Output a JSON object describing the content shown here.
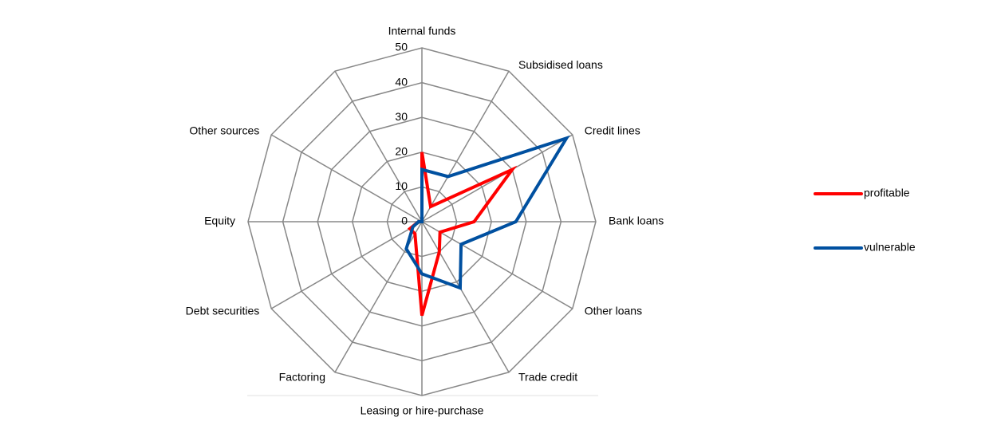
{
  "chart_data": {
    "type": "radar",
    "categories": [
      "Internal funds",
      "Subsidised loans",
      "Credit lines",
      "Bank loans",
      "Other loans",
      "Trade credit",
      "Leasing or hire-purchase",
      "Factoring",
      "Debt securities",
      "Equity",
      "Other sources",
      null
    ],
    "series": [
      {
        "name": "profitable",
        "color": "#ff0000",
        "values": [
          20,
          5,
          30,
          15,
          6,
          10,
          27,
          4,
          4,
          1,
          0,
          0
        ]
      },
      {
        "name": "vulnerable",
        "color": "#0050a0",
        "values": [
          15,
          15,
          48,
          27,
          13,
          22,
          15,
          9,
          3,
          1,
          0,
          0
        ]
      }
    ],
    "ylim": [
      0,
      50
    ],
    "yticks": [
      0,
      10,
      20,
      30,
      40,
      50
    ],
    "grid": true,
    "legend": "right"
  }
}
